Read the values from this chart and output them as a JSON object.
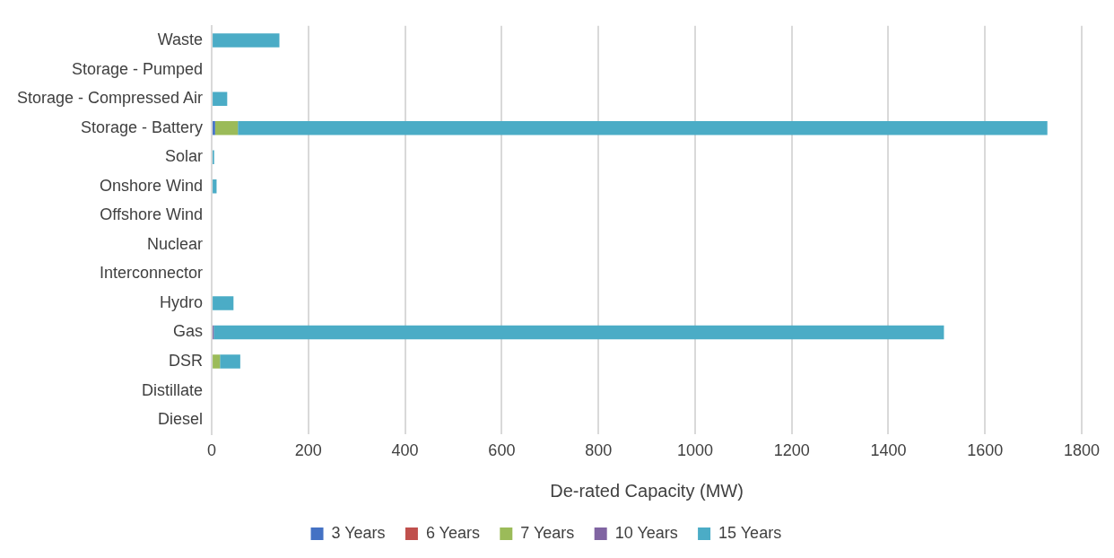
{
  "chart_data": {
    "type": "bar",
    "orientation": "horizontal",
    "stacked": true,
    "xlabel": "De-rated Capacity (MW)",
    "categories": [
      "Waste",
      "Storage - Pumped",
      "Storage - Compressed Air",
      "Storage - Battery",
      "Solar",
      "Onshore Wind",
      "Offshore Wind",
      "Nuclear",
      "Interconnector",
      "Hydro",
      "Gas",
      "DSR",
      "Distillate",
      "Diesel"
    ],
    "series": [
      {
        "name": "3 Years",
        "color": "#4472c4",
        "values": [
          null,
          null,
          null,
          7,
          null,
          null,
          null,
          null,
          null,
          null,
          null,
          null,
          null,
          null
        ]
      },
      {
        "name": "6 Years",
        "color": "#c0504d",
        "values": [
          null,
          null,
          null,
          null,
          null,
          null,
          null,
          null,
          null,
          null,
          null,
          null,
          null,
          null
        ]
      },
      {
        "name": "7 Years",
        "color": "#9bbb59",
        "values": [
          null,
          null,
          null,
          47,
          null,
          null,
          null,
          null,
          null,
          null,
          null,
          17,
          null,
          null
        ]
      },
      {
        "name": "10 Years",
        "color": "#8064a2",
        "values": [
          null,
          null,
          null,
          null,
          null,
          null,
          null,
          null,
          null,
          null,
          4,
          null,
          null,
          null
        ]
      },
      {
        "name": "15 Years",
        "color": "#4bacc6",
        "values": [
          140,
          null,
          32,
          1675,
          5,
          10,
          null,
          null,
          null,
          45,
          1511,
          42,
          null,
          null
        ]
      }
    ],
    "xlim": [
      0,
      1800
    ],
    "xticks": [
      0,
      200,
      400,
      600,
      800,
      1000,
      1200,
      1400,
      1600,
      1800
    ],
    "grid": "x",
    "legend": "bottom"
  }
}
